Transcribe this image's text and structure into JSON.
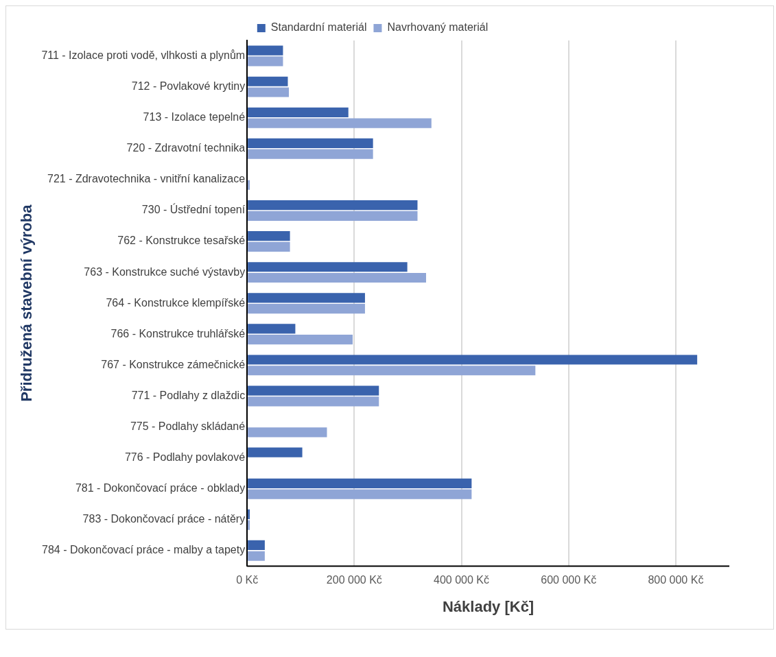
{
  "chart_data": {
    "type": "bar",
    "orientation": "horizontal",
    "xlabel": "Náklady [Kč]",
    "ylabel": "Přidružená stavební výroba",
    "categories": [
      "711 - Izolace proti vodě, vlhkosti a plynům",
      "712 - Povlakové krytiny",
      "713 - Izolace tepelné",
      "720 - Zdravotní technika",
      "721 - Zdravotechnika - vnitřní kanalizace",
      "730 - Ústřední topení",
      "762 - Konstrukce tesařské",
      "763 - Konstrukce suché výstavby",
      "764 - Konstrukce klempířské",
      "766 - Konstrukce truhlářské",
      "767 - Konstrukce zámečnické",
      "771 - Podlahy z dlaždic",
      "775 - Podlahy skládané",
      "776 - Podlahy povlakové",
      "781 - Dokončovací práce - obklady",
      "783 - Dokončovací práce - nátěry",
      "784 - Dokončovací práce - malby a tapety"
    ],
    "series": [
      {
        "name": "Standardní materiál",
        "color": "#3a63ad",
        "values": [
          67000,
          76000,
          189000,
          235000,
          0,
          318000,
          80000,
          299000,
          220000,
          90000,
          840000,
          246000,
          0,
          103000,
          419000,
          5000,
          33000
        ]
      },
      {
        "name": "Navrhovaný materiál",
        "color": "#8fa5d6",
        "values": [
          67000,
          78000,
          344000,
          235000,
          5000,
          318000,
          80000,
          334000,
          220000,
          197000,
          538000,
          246000,
          149000,
          0,
          419000,
          5000,
          33000
        ]
      }
    ],
    "xlim": [
      0,
      900000
    ],
    "xticks": [
      {
        "value": 0,
        "label": "0 Kč"
      },
      {
        "value": 200000,
        "label": "200 000 Kč"
      },
      {
        "value": 400000,
        "label": "400 000 Kč"
      },
      {
        "value": 600000,
        "label": "600 000 Kč"
      },
      {
        "value": 800000,
        "label": "800 000 Kč"
      }
    ],
    "grid": "x",
    "legend": "top"
  }
}
